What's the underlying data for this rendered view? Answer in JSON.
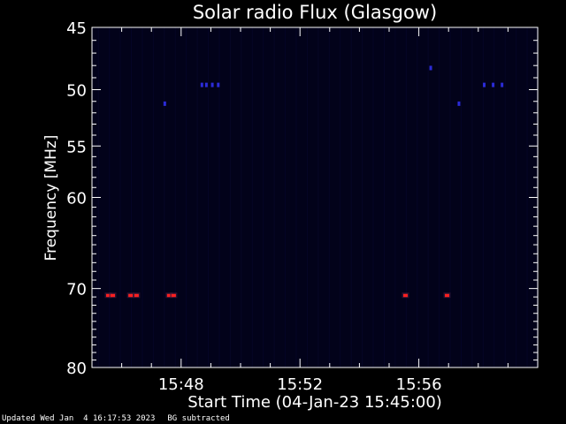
{
  "chart_data": {
    "type": "heatmap",
    "title": "Solar radio Flux (Glasgow)",
    "xlabel": "Start Time (04-Jan-23 15:45:00)",
    "ylabel": "Frequency [MHz]",
    "x_ticks": [
      "15:48",
      "15:52",
      "15:56"
    ],
    "x_tick_minutes": [
      3,
      7,
      11
    ],
    "xlim_minutes": [
      0,
      15
    ],
    "y_ticks": [
      45,
      50,
      55,
      60,
      70,
      80
    ],
    "ylim": [
      45,
      80
    ],
    "y_scale": "log",
    "grid": false,
    "colors": {
      "background": "#000000",
      "plot_bg": "#02021a",
      "axis": "#ffffff",
      "weak": "#2b2bd8",
      "strong": "#ff2020"
    },
    "features": [
      {
        "t_min": 0.55,
        "f_mhz": 70.8,
        "level": "strong"
      },
      {
        "t_min": 0.7,
        "f_mhz": 70.8,
        "level": "strong"
      },
      {
        "t_min": 1.3,
        "f_mhz": 70.8,
        "level": "strong"
      },
      {
        "t_min": 1.5,
        "f_mhz": 70.8,
        "level": "strong"
      },
      {
        "t_min": 2.6,
        "f_mhz": 70.8,
        "level": "strong"
      },
      {
        "t_min": 2.75,
        "f_mhz": 70.8,
        "level": "strong"
      },
      {
        "t_min": 10.55,
        "f_mhz": 70.8,
        "level": "strong"
      },
      {
        "t_min": 11.95,
        "f_mhz": 70.8,
        "level": "strong"
      },
      {
        "t_min": 2.45,
        "f_mhz": 51.2,
        "level": "weak"
      },
      {
        "t_min": 3.7,
        "f_mhz": 49.6,
        "level": "weak"
      },
      {
        "t_min": 3.85,
        "f_mhz": 49.6,
        "level": "weak"
      },
      {
        "t_min": 4.05,
        "f_mhz": 49.6,
        "level": "weak"
      },
      {
        "t_min": 4.25,
        "f_mhz": 49.6,
        "level": "weak"
      },
      {
        "t_min": 11.4,
        "f_mhz": 48.2,
        "level": "weak"
      },
      {
        "t_min": 12.35,
        "f_mhz": 51.2,
        "level": "weak"
      },
      {
        "t_min": 13.2,
        "f_mhz": 49.6,
        "level": "weak"
      },
      {
        "t_min": 13.5,
        "f_mhz": 49.6,
        "level": "weak"
      },
      {
        "t_min": 13.8,
        "f_mhz": 49.6,
        "level": "weak"
      }
    ]
  },
  "footer": {
    "updated": "Updated Wed Jan  4 16:17:53 2023",
    "note": "BG subtracted"
  }
}
